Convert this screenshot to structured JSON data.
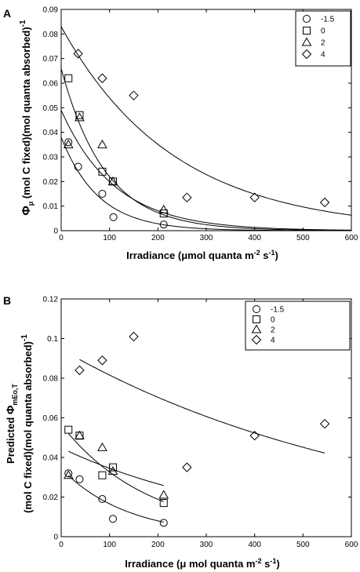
{
  "chart_data": [
    {
      "panel": "A",
      "type": "scatter",
      "xlim": [
        0,
        600
      ],
      "ylim": [
        0,
        0.09
      ],
      "xticks": [
        "0",
        "100",
        "200",
        "300",
        "400",
        "500",
        "600"
      ],
      "yticks": [
        "0",
        "0.01",
        "0.02",
        "0.03",
        "0.04",
        "0.05",
        "0.06",
        "0.07",
        "0.08",
        "0.09"
      ],
      "xlabel_parts": [
        "Irradiance (",
        "μ",
        "mol quanta m",
        "-2",
        " s",
        "-1",
        ")"
      ],
      "ylabel_parts": [
        "Φ",
        "μ",
        " (mol C fixed)(mol quanta absorbed)",
        "-1"
      ],
      "legend_position": "top-right",
      "series": [
        {
          "name": "-1.5",
          "marker": "circle",
          "points": [
            [
              15,
              0.036
            ],
            [
              35,
              0.026
            ],
            [
              85,
              0.015
            ],
            [
              108,
              0.0055
            ],
            [
              212,
              0.0025
            ]
          ],
          "fit": {
            "a": 0.038,
            "k": 0.013
          }
        },
        {
          "name": "0",
          "marker": "square",
          "points": [
            [
              15,
              0.062
            ],
            [
              38,
              0.047
            ],
            [
              85,
              0.024
            ],
            [
              107,
              0.02
            ],
            [
              212,
              0.007
            ]
          ],
          "fit": {
            "a": 0.066,
            "k": 0.011
          }
        },
        {
          "name": "2",
          "marker": "triangle",
          "points": [
            [
              15,
              0.035
            ],
            [
              38,
              0.046
            ],
            [
              85,
              0.035
            ],
            [
              107,
              0.02
            ],
            [
              212,
              0.0085
            ]
          ],
          "fit": {
            "a": 0.049,
            "k": 0.009
          }
        },
        {
          "name": "4",
          "marker": "diamond",
          "points": [
            [
              35,
              0.072
            ],
            [
              85,
              0.062
            ],
            [
              150,
              0.055
            ],
            [
              260,
              0.0135
            ],
            [
              400,
              0.0135
            ],
            [
              545,
              0.0115
            ]
          ],
          "fit": {
            "a": 0.083,
            "k": 0.0043
          }
        }
      ]
    },
    {
      "panel": "B",
      "type": "scatter",
      "xlim": [
        0,
        600
      ],
      "ylim": [
        0,
        0.12
      ],
      "xticks": [
        "0",
        "100",
        "200",
        "300",
        "400",
        "500",
        "600"
      ],
      "yticks": [
        "0",
        "0.02",
        "0.04",
        "0.06",
        "0.08",
        "0.1",
        "0.12"
      ],
      "xlabel_parts": [
        "Irradiance (",
        "μ",
        " mol quanta m",
        "-2",
        " s",
        "-1",
        ")"
      ],
      "ylabel_line1_parts": [
        "Predicted ",
        "Φ",
        "mEo,T"
      ],
      "ylabel_line2_parts": [
        "(mol C fixed)(mol quanta absorbed)",
        "-1"
      ],
      "legend_position": "top-right",
      "series": [
        {
          "name": "-1.5",
          "marker": "circle",
          "points": [
            [
              15,
              0.032
            ],
            [
              38,
              0.029
            ],
            [
              85,
              0.019
            ],
            [
              107,
              0.009
            ],
            [
              212,
              0.007
            ]
          ],
          "fit": {
            "a": 0.0344,
            "k": 0.0073,
            "x0": 15,
            "x1": 212
          }
        },
        {
          "name": "0",
          "marker": "square",
          "points": [
            [
              15,
              0.054
            ],
            [
              38,
              0.051
            ],
            [
              85,
              0.031
            ],
            [
              107,
              0.035
            ],
            [
              212,
              0.017
            ]
          ],
          "fit": {
            "a": 0.0566,
            "k": 0.0055,
            "x0": 15,
            "x1": 212
          }
        },
        {
          "name": "2",
          "marker": "triangle",
          "points": [
            [
              15,
              0.031
            ],
            [
              38,
              0.051
            ],
            [
              85,
              0.045
            ],
            [
              107,
              0.033
            ],
            [
              212,
              0.021
            ]
          ],
          "fit": {
            "a": 0.0448,
            "k": 0.0026,
            "x0": 15,
            "x1": 212
          }
        },
        {
          "name": "4",
          "marker": "diamond",
          "points": [
            [
              38,
              0.084
            ],
            [
              85,
              0.089
            ],
            [
              150,
              0.101
            ],
            [
              260,
              0.035
            ],
            [
              400,
              0.051
            ],
            [
              545,
              0.057
            ]
          ],
          "fit": {
            "a": 0.0946,
            "k": 0.00148,
            "x0": 38,
            "x1": 545
          }
        }
      ]
    }
  ]
}
